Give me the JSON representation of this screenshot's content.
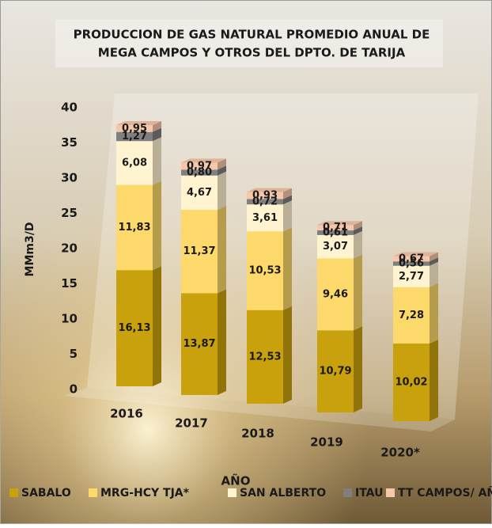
{
  "chart_data": {
    "type": "bar",
    "stacked": true,
    "title": [
      "PRODUCCION DE GAS NATURAL PROMEDIO ANUAL DE",
      "MEGA CAMPOS Y OTROS DEL DPTO. DE TARIJA"
    ],
    "xlabel": "AÑO",
    "ylabel": "MMm3/D",
    "categories": [
      "2016",
      "2017",
      "2018",
      "2019",
      "2020*"
    ],
    "ylim": [
      0,
      40
    ],
    "yticks": [
      0,
      5,
      10,
      15,
      20,
      25,
      30,
      35,
      40
    ],
    "legend": "bottom",
    "series": [
      {
        "name": "SABALO",
        "color": "#c9a10c",
        "values": [
          16.13,
          13.87,
          12.53,
          10.79,
          10.02
        ],
        "value_labels": [
          "16,13",
          "13,87",
          "12,53",
          "10,79",
          "10,02"
        ]
      },
      {
        "name": "MRG-HCY TJA*",
        "color": "#fcd96a",
        "values": [
          11.83,
          11.37,
          10.53,
          9.46,
          7.28
        ],
        "value_labels": [
          "11,83",
          "11,37",
          "10,53",
          "9,46",
          "7,28"
        ]
      },
      {
        "name": "SAN ALBERTO",
        "color": "#fff3d0",
        "values": [
          6.08,
          4.67,
          3.61,
          3.07,
          2.77
        ],
        "value_labels": [
          "6,08",
          "4,67",
          "3,61",
          "3,07",
          "2,77"
        ]
      },
      {
        "name": "ITAU",
        "color": "#7f7f7f",
        "values": [
          1.27,
          0.8,
          0.72,
          0.61,
          0.56
        ],
        "value_labels": [
          "1,27",
          "0,80",
          "0,72",
          "0,61",
          "0,56"
        ]
      },
      {
        "name": "TT CAMPOS/ AÑO",
        "color": "#f6c7aa",
        "values": [
          0.95,
          0.97,
          0.93,
          0.71,
          0.67
        ],
        "value_labels": [
          "0,95",
          "0,97",
          "0,93",
          "0,71",
          "0,67"
        ]
      }
    ]
  }
}
